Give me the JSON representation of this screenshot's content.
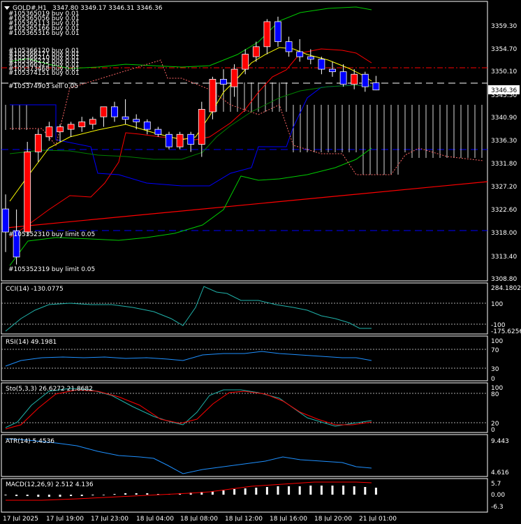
{
  "header": {
    "symbol": "GOLD#,H1",
    "ohlc": "3347.80 3349.17 3346.31 3346.36"
  },
  "orders_top": [
    "#105365019 buy 0.01",
    "#105365056 buy 0.01",
    "#105365113 buy 0.01",
    "#105365166 buy 0.01",
    "#105365316 buy 0.01"
  ],
  "orders_mid": [
    "#105366120 buy 0.01",
    "#105366171 buy 0.01",
    "#105366210 buy 0.01",
    "#105366273 buy 0.01",
    "#105366325 buy 0.01",
    "#105373468 buy 0.01",
    "#105374151 buy 0.01"
  ],
  "orders_low": [
    "#105374903 sell 0.05"
  ],
  "limit_orders": [
    "#105352310 buy limit 0.05",
    "#105352319 buy limit 0.05"
  ],
  "price_axis": {
    "ticks": [
      "3359.30",
      "3354.70",
      "3350.10",
      "3345.50",
      "3340.90",
      "3336.30",
      "3331.80",
      "3327.20",
      "3322.60",
      "3318.00",
      "3313.40",
      "3308.80"
    ],
    "current": "3346.36"
  },
  "time_axis": [
    "17 Jul 2025",
    "17 Jul 19:00",
    "17 Jul 23:00",
    "18 Jul 04:00",
    "18 Jul 08:00",
    "18 Jul 12:00",
    "18 Jul 16:00",
    "18 Jul 20:00",
    "21 Jul 01:00"
  ],
  "indicators": {
    "cci": {
      "label": "CCI(14) -130.0775",
      "scale": [
        "284.1802",
        "100",
        "-100",
        "-175.6256"
      ]
    },
    "rsi": {
      "label": "RSI(14) 49.1981",
      "scale": [
        "100",
        "70",
        "30",
        "0"
      ]
    },
    "sto": {
      "label": "Sto(5,3,3) 26.6272 21.8682",
      "scale": [
        "100",
        "80",
        "20",
        "0"
      ]
    },
    "atr": {
      "label": "ATR(14) 5.4536",
      "scale": [
        "9.443",
        "4.616"
      ]
    },
    "macd": {
      "label": "MACD(12,26,9) 2.512 4.136",
      "scale": [
        "5.7",
        "0.00",
        "-6.3"
      ]
    }
  },
  "colors": {
    "bull": "#ff0000",
    "bear": "#0000ff",
    "grid": "#ffffff",
    "text": "#ffffff",
    "bb_upper": "#00ff00",
    "ma_fast": "#ffff00",
    "ma_red": "#ff0000",
    "ma_blue": "#0000ff"
  },
  "chart_data": {
    "type": "line",
    "title": "GOLD#,H1",
    "ylim": [
      3308.8,
      3362.0
    ],
    "candles": [
      {
        "o": 3322.6,
        "h": 3325.5,
        "l": 3314.0,
        "c": 3318.0
      },
      {
        "o": 3318.2,
        "h": 3322.5,
        "l": 3311.5,
        "c": 3313.0
      },
      {
        "o": 3318.0,
        "h": 3336.0,
        "l": 3317.2,
        "c": 3334.0
      },
      {
        "o": 3334.0,
        "h": 3338.5,
        "l": 3332.0,
        "c": 3337.5
      },
      {
        "o": 3337.0,
        "h": 3340.0,
        "l": 3336.2,
        "c": 3339.0
      },
      {
        "o": 3338.0,
        "h": 3339.5,
        "l": 3336.0,
        "c": 3339.0
      },
      {
        "o": 3338.5,
        "h": 3340.0,
        "l": 3337.0,
        "c": 3339.5
      },
      {
        "o": 3339.0,
        "h": 3341.0,
        "l": 3338.0,
        "c": 3340.0
      },
      {
        "o": 3339.5,
        "h": 3341.0,
        "l": 3338.5,
        "c": 3340.5
      },
      {
        "o": 3341.0,
        "h": 3343.0,
        "l": 3339.0,
        "c": 3343.0
      },
      {
        "o": 3343.0,
        "h": 3344.0,
        "l": 3340.0,
        "c": 3341.0
      },
      {
        "o": 3341.0,
        "h": 3344.5,
        "l": 3339.5,
        "c": 3340.5
      },
      {
        "o": 3340.5,
        "h": 3341.5,
        "l": 3338.5,
        "c": 3340.0
      },
      {
        "o": 3340.0,
        "h": 3340.5,
        "l": 3337.5,
        "c": 3338.5
      },
      {
        "o": 3338.5,
        "h": 3339.0,
        "l": 3337.0,
        "c": 3337.5
      },
      {
        "o": 3337.5,
        "h": 3338.0,
        "l": 3334.5,
        "c": 3335.0
      },
      {
        "o": 3335.0,
        "h": 3338.0,
        "l": 3334.5,
        "c": 3337.5
      },
      {
        "o": 3337.5,
        "h": 3338.0,
        "l": 3334.0,
        "c": 3335.5
      },
      {
        "o": 3335.5,
        "h": 3344.0,
        "l": 3333.0,
        "c": 3342.5
      },
      {
        "o": 3342.0,
        "h": 3349.0,
        "l": 3340.5,
        "c": 3348.5
      },
      {
        "o": 3348.5,
        "h": 3350.5,
        "l": 3346.0,
        "c": 3347.5
      },
      {
        "o": 3347.0,
        "h": 3351.5,
        "l": 3345.0,
        "c": 3350.5
      },
      {
        "o": 3350.5,
        "h": 3354.5,
        "l": 3349.5,
        "c": 3353.5
      },
      {
        "o": 3353.0,
        "h": 3356.0,
        "l": 3352.0,
        "c": 3355.0
      },
      {
        "o": 3355.0,
        "h": 3360.5,
        "l": 3353.5,
        "c": 3360.0
      },
      {
        "o": 3360.0,
        "h": 3361.0,
        "l": 3355.0,
        "c": 3356.0
      },
      {
        "o": 3356.0,
        "h": 3357.0,
        "l": 3353.0,
        "c": 3354.0
      },
      {
        "o": 3354.0,
        "h": 3356.5,
        "l": 3352.0,
        "c": 3353.0
      },
      {
        "o": 3353.0,
        "h": 3354.5,
        "l": 3351.5,
        "c": 3352.5
      },
      {
        "o": 3352.5,
        "h": 3353.0,
        "l": 3349.5,
        "c": 3350.5
      },
      {
        "o": 3350.5,
        "h": 3352.0,
        "l": 3349.0,
        "c": 3350.0
      },
      {
        "o": 3350.0,
        "h": 3351.5,
        "l": 3347.0,
        "c": 3347.5
      },
      {
        "o": 3347.5,
        "h": 3350.5,
        "l": 3346.5,
        "c": 3349.5
      },
      {
        "o": 3349.5,
        "h": 3350.0,
        "l": 3346.0,
        "c": 3347.0
      },
      {
        "o": 3347.8,
        "h": 3349.17,
        "l": 3346.31,
        "c": 3346.36
      }
    ],
    "levels": {
      "buy_orders": 3348.5,
      "sell_order": 3347.0,
      "limit_1": 3318.0,
      "limit_2": 3312.5,
      "dash_red": 3350.1,
      "dash_blue": 3334.7
    }
  }
}
